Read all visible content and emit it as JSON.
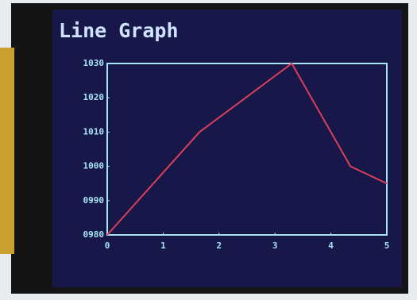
{
  "chart_data": {
    "type": "line",
    "title": "Line Graph",
    "x": [
      0,
      1.65,
      3.3,
      4.35,
      5
    ],
    "series": [
      {
        "color": "#d8405a",
        "values": [
          980,
          1010,
          1030,
          1000,
          995
        ]
      }
    ],
    "xlim": [
      0,
      5
    ],
    "xticks": [
      0,
      1,
      2,
      3,
      4,
      5
    ],
    "ylim": [
      980,
      1030
    ],
    "yticks": [
      {
        "value": 980,
        "label": "0980"
      },
      {
        "value": 990,
        "label": "0990"
      },
      1000,
      1010,
      1020,
      1030
    ],
    "grid": false
  }
}
